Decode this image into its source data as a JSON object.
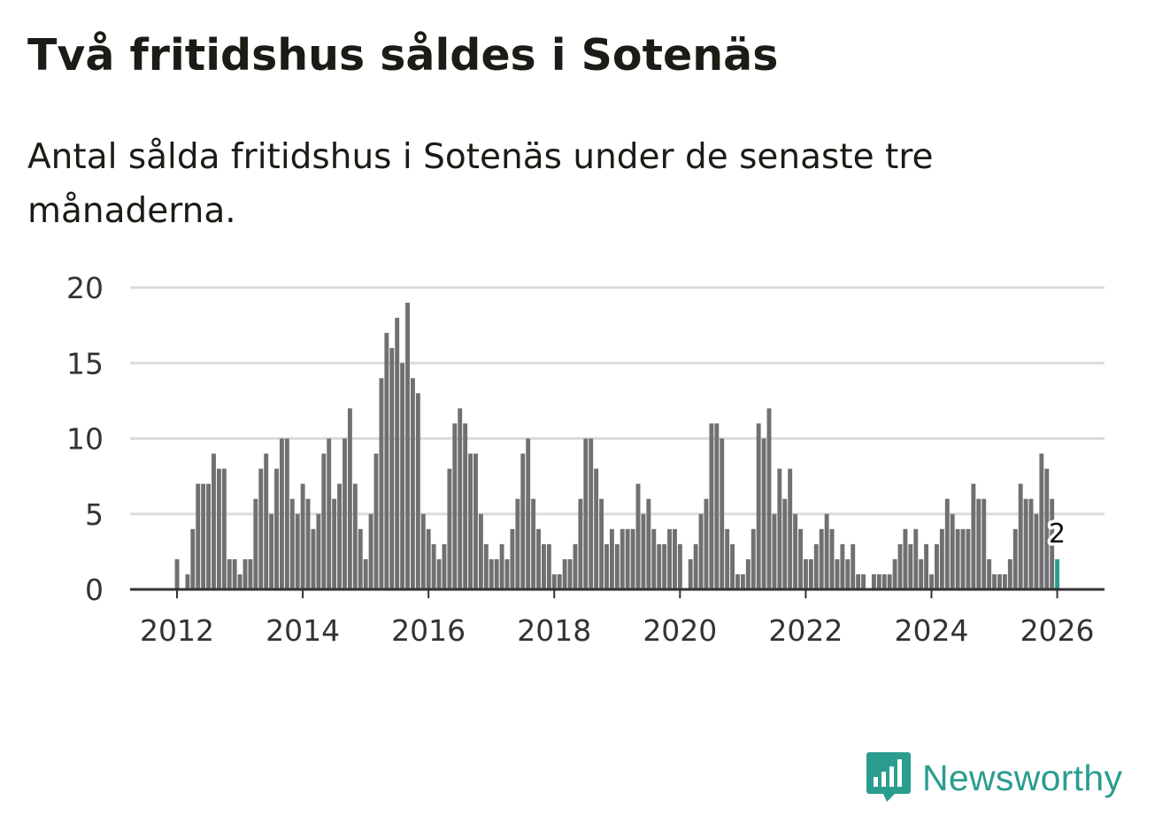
{
  "title": "Två fritidshus såldes i Sotenäs",
  "subtitle": "Antal sålda fritidshus i Sotenäs under de senaste tre månaderna.",
  "brand": {
    "name": "Newsworthy",
    "color": "#2a9d8f",
    "icon": "bar-chart-speech-bubble-icon"
  },
  "chart_data": {
    "type": "bar",
    "x_type": "month",
    "start_month": "2012-01",
    "yticks": [
      0,
      5,
      10,
      15,
      20
    ],
    "xticks": [
      "2012",
      "2014",
      "2016",
      "2018",
      "2020",
      "2022",
      "2024",
      "2026"
    ],
    "ylim": [
      0,
      20
    ],
    "grid": true,
    "bar_color": "#707073",
    "highlight_color": "#2a9d8f",
    "highlight_label": "2",
    "values": [
      2,
      0,
      1,
      4,
      7,
      7,
      7,
      9,
      8,
      8,
      2,
      2,
      1,
      2,
      2,
      6,
      8,
      9,
      5,
      8,
      10,
      10,
      6,
      5,
      7,
      6,
      4,
      5,
      9,
      10,
      6,
      7,
      10,
      12,
      7,
      4,
      2,
      5,
      9,
      14,
      17,
      16,
      18,
      15,
      19,
      14,
      13,
      5,
      4,
      3,
      2,
      3,
      8,
      11,
      12,
      11,
      9,
      9,
      5,
      3,
      2,
      2,
      3,
      2,
      4,
      6,
      9,
      10,
      6,
      4,
      3,
      3,
      1,
      1,
      2,
      2,
      3,
      6,
      10,
      10,
      8,
      6,
      3,
      4,
      3,
      4,
      4,
      4,
      7,
      5,
      6,
      4,
      3,
      3,
      4,
      4,
      3,
      0,
      2,
      3,
      5,
      6,
      11,
      11,
      10,
      4,
      3,
      1,
      1,
      2,
      4,
      11,
      10,
      12,
      5,
      8,
      6,
      8,
      5,
      4,
      2,
      2,
      3,
      4,
      5,
      4,
      2,
      3,
      2,
      3,
      1,
      1,
      0,
      1,
      1,
      1,
      1,
      2,
      3,
      4,
      3,
      4,
      2,
      3,
      1,
      3,
      4,
      6,
      5,
      4,
      4,
      4,
      7,
      6,
      6,
      2,
      1,
      1,
      1,
      2,
      4,
      7,
      6,
      6,
      5,
      9,
      8,
      6,
      2
    ]
  }
}
